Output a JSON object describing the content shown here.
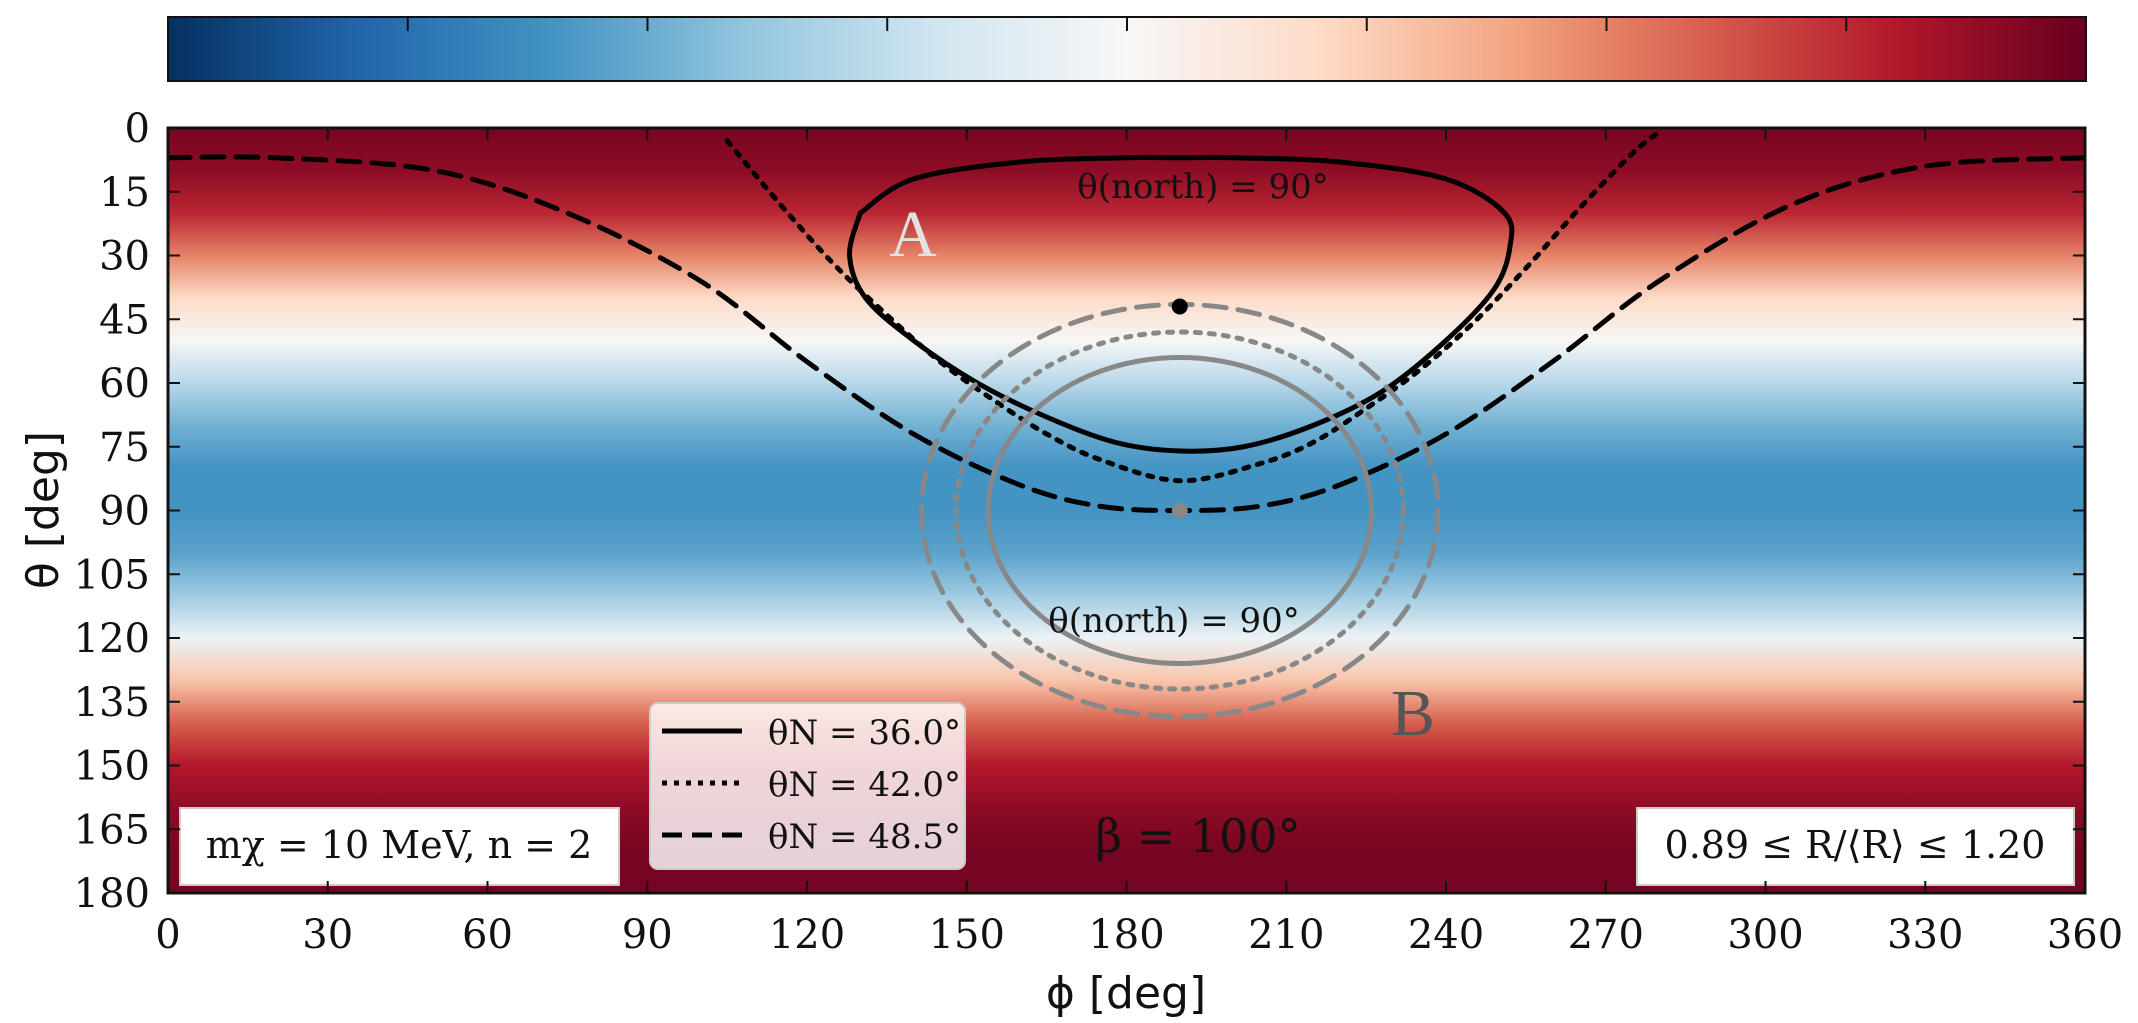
{
  "chart_data": {
    "type": "heatmap",
    "xlabel": "ϕ [deg]",
    "ylabel": "θ [deg]",
    "xlim": [
      0,
      360
    ],
    "ylim": [
      180,
      0
    ],
    "x_ticks": [
      "0",
      "30",
      "60",
      "90",
      "120",
      "150",
      "180",
      "210",
      "240",
      "270",
      "300",
      "330",
      "360"
    ],
    "y_ticks": [
      "0",
      "15",
      "30",
      "45",
      "60",
      "75",
      "90",
      "105",
      "120",
      "135",
      "150",
      "165",
      "180"
    ],
    "colormap": "RdBu_r",
    "colormap_colors": [
      "#053061",
      "#2166ac",
      "#4393c3",
      "#92c5de",
      "#d1e5f0",
      "#f7f7f7",
      "#fddbc7",
      "#f4a582",
      "#d6604d",
      "#b2182b",
      "#67001f"
    ],
    "heatmap_profile": {
      "theta": [
        0,
        10,
        20,
        30,
        40,
        50,
        60,
        70,
        80,
        90,
        100,
        110,
        120,
        130,
        140,
        150,
        160,
        170,
        180
      ],
      "level": [
        0.98,
        0.95,
        0.88,
        0.75,
        0.6,
        0.5,
        0.36,
        0.26,
        0.2,
        0.2,
        0.23,
        0.32,
        0.47,
        0.64,
        0.8,
        0.9,
        0.95,
        0.98,
        0.98
      ]
    },
    "series": [
      {
        "name": "θ_N = 36.0°",
        "style": "solid",
        "color": "#000000",
        "x": [
          130,
          128,
          131,
          140,
          152,
          165,
          178,
          190,
          202,
          215,
          228,
          240,
          249,
          252,
          251,
          240,
          220,
          200,
          190,
          180,
          160,
          140,
          130
        ],
        "y": [
          20,
          30,
          40,
          50,
          60,
          68,
          74,
          76,
          75,
          70,
          62,
          50,
          38,
          28,
          20,
          12,
          8,
          7,
          7,
          7,
          8,
          12,
          20
        ]
      },
      {
        "name": "θ_N = 42.0°",
        "style": "dotted",
        "color": "#000000",
        "x": [
          105,
          115,
          125,
          135,
          145,
          155,
          165,
          175,
          190,
          205,
          215,
          225,
          235,
          245,
          255,
          265,
          275,
          280
        ],
        "y": [
          3,
          18,
          32,
          44,
          55,
          64,
          72,
          78,
          83,
          79,
          74,
          66,
          57,
          46,
          33,
          19,
          6,
          1
        ]
      },
      {
        "name": "θ_N = 48.5°",
        "style": "dashed",
        "color": "#000000",
        "x": [
          0,
          20,
          50,
          75,
          100,
          120,
          140,
          160,
          175,
          190,
          205,
          220,
          240,
          260,
          280,
          305,
          330,
          360
        ],
        "y": [
          7,
          7,
          10,
          20,
          36,
          55,
          72,
          84,
          89,
          90,
          89,
          84,
          72,
          55,
          36,
          18,
          9,
          7
        ]
      },
      {
        "name": "",
        "style": "solid",
        "color": "#888888",
        "ellipse": {
          "cx": 190,
          "cy": 90,
          "rx": 36,
          "ry": 36
        }
      },
      {
        "name": "",
        "style": "dotted",
        "color": "#888888",
        "ellipse": {
          "cx": 190,
          "cy": 90,
          "rx": 42,
          "ry": 42
        }
      },
      {
        "name": "",
        "style": "dashed",
        "color": "#888888",
        "ellipse": {
          "cx": 190,
          "cy": 90,
          "rx": 48.5,
          "ry": 48.5
        }
      }
    ],
    "points": [
      {
        "x": 190,
        "y": 42,
        "color": "#000000"
      },
      {
        "x": 190,
        "y": 90,
        "color": "#888888"
      }
    ],
    "annotations": [
      {
        "text": "θ(north) = 90°",
        "x": 195,
        "y": 13,
        "color": "#ffffff"
      },
      {
        "text": "θ(north) = 90°",
        "x": 193,
        "y": 115,
        "color": "#000000"
      },
      {
        "text": "A",
        "x": 140,
        "y": 26,
        "color": "#dddddd"
      },
      {
        "text": "B",
        "x": 235,
        "y": 138,
        "color": "#555555"
      },
      {
        "text": "β = 100°",
        "x": 195,
        "y": 166,
        "color": "#ffffff"
      }
    ],
    "boxes": [
      {
        "text": "mχ = 10 MeV, n = 2",
        "place": "bottom-left"
      },
      {
        "text": "0.89 ≤ R/⟨R⟩ ≤ 1.20",
        "place": "bottom-right"
      }
    ],
    "legend": {
      "placement": "lower-center-left",
      "entries": [
        {
          "label": "θN = 36.0°",
          "style": "solid"
        },
        {
          "label": "θN = 42.0°",
          "style": "dotted"
        },
        {
          "label": "θN = 48.5°",
          "style": "dashed"
        }
      ]
    }
  }
}
